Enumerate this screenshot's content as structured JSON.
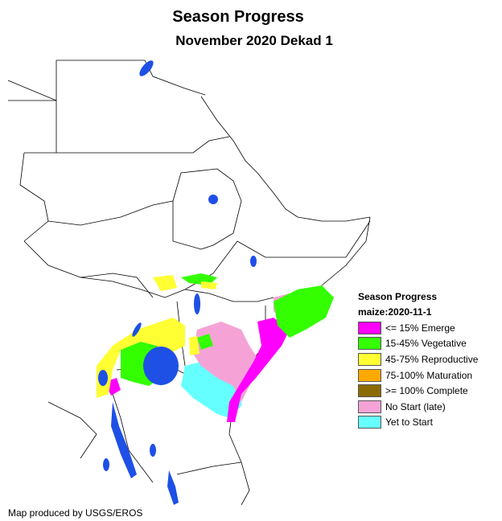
{
  "map": {
    "title": "Season Progress",
    "subtitle": "November 2020 Dekad 1",
    "credit": "Map produced by USGS/EROS",
    "legend": {
      "title": "Season Progress",
      "subtitle": "maize:2020-11-1",
      "items": [
        {
          "label": "<= 15% Emerge",
          "color": "#ff00ff"
        },
        {
          "label": "15-45% Vegetative",
          "color": "#33ff00"
        },
        {
          "label": "45-75% Reproductive",
          "color": "#ffff33"
        },
        {
          "label": "75-100% Maturation",
          "color": "#ffaa00"
        },
        {
          "label": ">= 100% Complete",
          "color": "#8b6b00"
        },
        {
          "label": "No Start (late)",
          "color": "#f5a3d6"
        },
        {
          "label": "Yet to Start",
          "color": "#66ffff"
        }
      ]
    },
    "colors": {
      "water": "#1e50e6",
      "border": "#000000",
      "land": "#ffffff"
    }
  }
}
